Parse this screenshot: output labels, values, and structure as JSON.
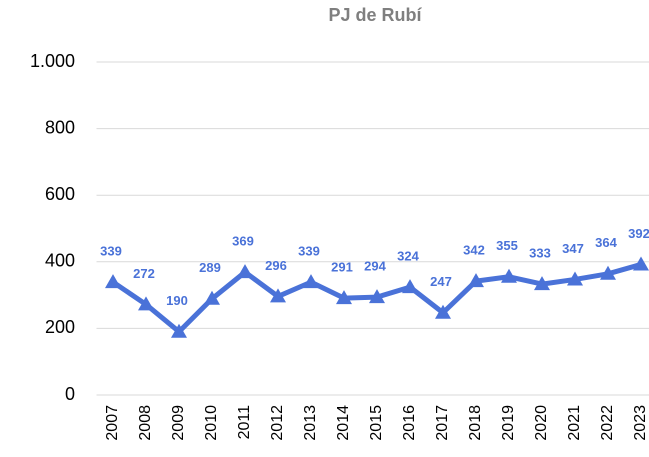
{
  "chart_data": {
    "type": "line",
    "title": "PJ de Rubí",
    "categories": [
      "2007",
      "2008",
      "2009",
      "2010",
      "2011",
      "2012",
      "2013",
      "2014",
      "2015",
      "2016",
      "2017",
      "2018",
      "2019",
      "2020",
      "2021",
      "2022",
      "2023"
    ],
    "series": [
      {
        "name": "PJ de Rubí",
        "color": "#4a72d8",
        "values": [
          339,
          272,
          190,
          289,
          369,
          296,
          339,
          291,
          294,
          324,
          247,
          342,
          355,
          333,
          347,
          364,
          392
        ]
      }
    ],
    "ylim": [
      0,
      1000
    ],
    "yticks": [
      0,
      200,
      400,
      600,
      800,
      {
        "value": 1000,
        "label": "1.000"
      }
    ],
    "grid": true
  }
}
